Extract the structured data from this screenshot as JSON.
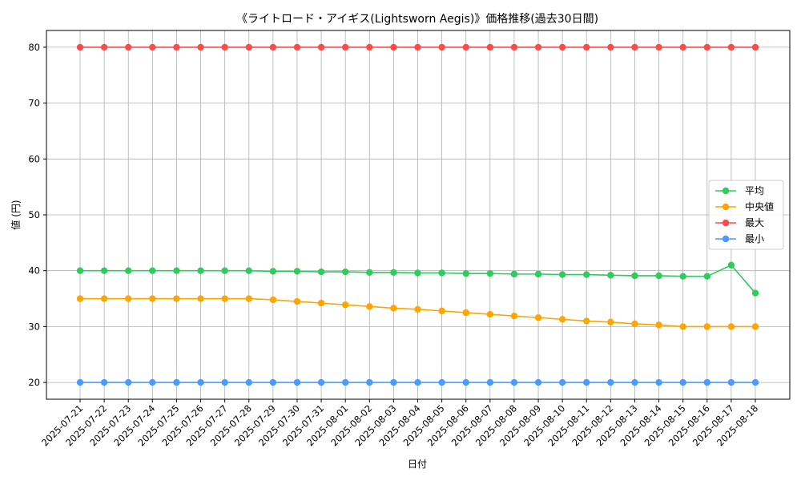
{
  "chart_data": {
    "type": "line",
    "title": "《ライトロード・アイギス(Lightsworn Aegis)》価格推移(過去30日間)",
    "xlabel": "日付",
    "ylabel": "値 (円)",
    "ylim": [
      17,
      83
    ],
    "yticks": [
      20,
      30,
      40,
      50,
      60,
      70,
      80
    ],
    "grid": true,
    "legend_position": "center-right",
    "categories": [
      "2025-07-21",
      "2025-07-22",
      "2025-07-23",
      "2025-07-24",
      "2025-07-25",
      "2025-07-26",
      "2025-07-27",
      "2025-07-28",
      "2025-07-29",
      "2025-07-30",
      "2025-07-31",
      "2025-08-01",
      "2025-08-02",
      "2025-08-03",
      "2025-08-04",
      "2025-08-05",
      "2025-08-06",
      "2025-08-07",
      "2025-08-08",
      "2025-08-09",
      "2025-08-10",
      "2025-08-11",
      "2025-08-12",
      "2025-08-13",
      "2025-08-14",
      "2025-08-15",
      "2025-08-16",
      "2025-08-17",
      "2025-08-18"
    ],
    "series": [
      {
        "name": "平均",
        "color": "#2ecc5c",
        "values": [
          40,
          40,
          40,
          40,
          40,
          40,
          40,
          40,
          39.9,
          39.9,
          39.8,
          39.8,
          39.7,
          39.7,
          39.6,
          39.6,
          39.5,
          39.5,
          39.4,
          39.4,
          39.3,
          39.3,
          39.2,
          39.1,
          39.1,
          39,
          39,
          41,
          36
        ]
      },
      {
        "name": "中央値",
        "color": "#ffa500",
        "values": [
          35,
          35,
          35,
          35,
          35,
          35,
          35,
          35,
          34.8,
          34.5,
          34.2,
          33.9,
          33.6,
          33.3,
          33.1,
          32.8,
          32.5,
          32.2,
          31.9,
          31.6,
          31.3,
          31.0,
          30.8,
          30.5,
          30.3,
          30,
          30,
          30,
          30
        ]
      },
      {
        "name": "最大",
        "color": "#ff4a4a",
        "values": [
          80,
          80,
          80,
          80,
          80,
          80,
          80,
          80,
          80,
          80,
          80,
          80,
          80,
          80,
          80,
          80,
          80,
          80,
          80,
          80,
          80,
          80,
          80,
          80,
          80,
          80,
          80,
          80,
          80
        ]
      },
      {
        "name": "最小",
        "color": "#4a9bff",
        "values": [
          20,
          20,
          20,
          20,
          20,
          20,
          20,
          20,
          20,
          20,
          20,
          20,
          20,
          20,
          20,
          20,
          20,
          20,
          20,
          20,
          20,
          20,
          20,
          20,
          20,
          20,
          20,
          20,
          20
        ]
      }
    ]
  }
}
